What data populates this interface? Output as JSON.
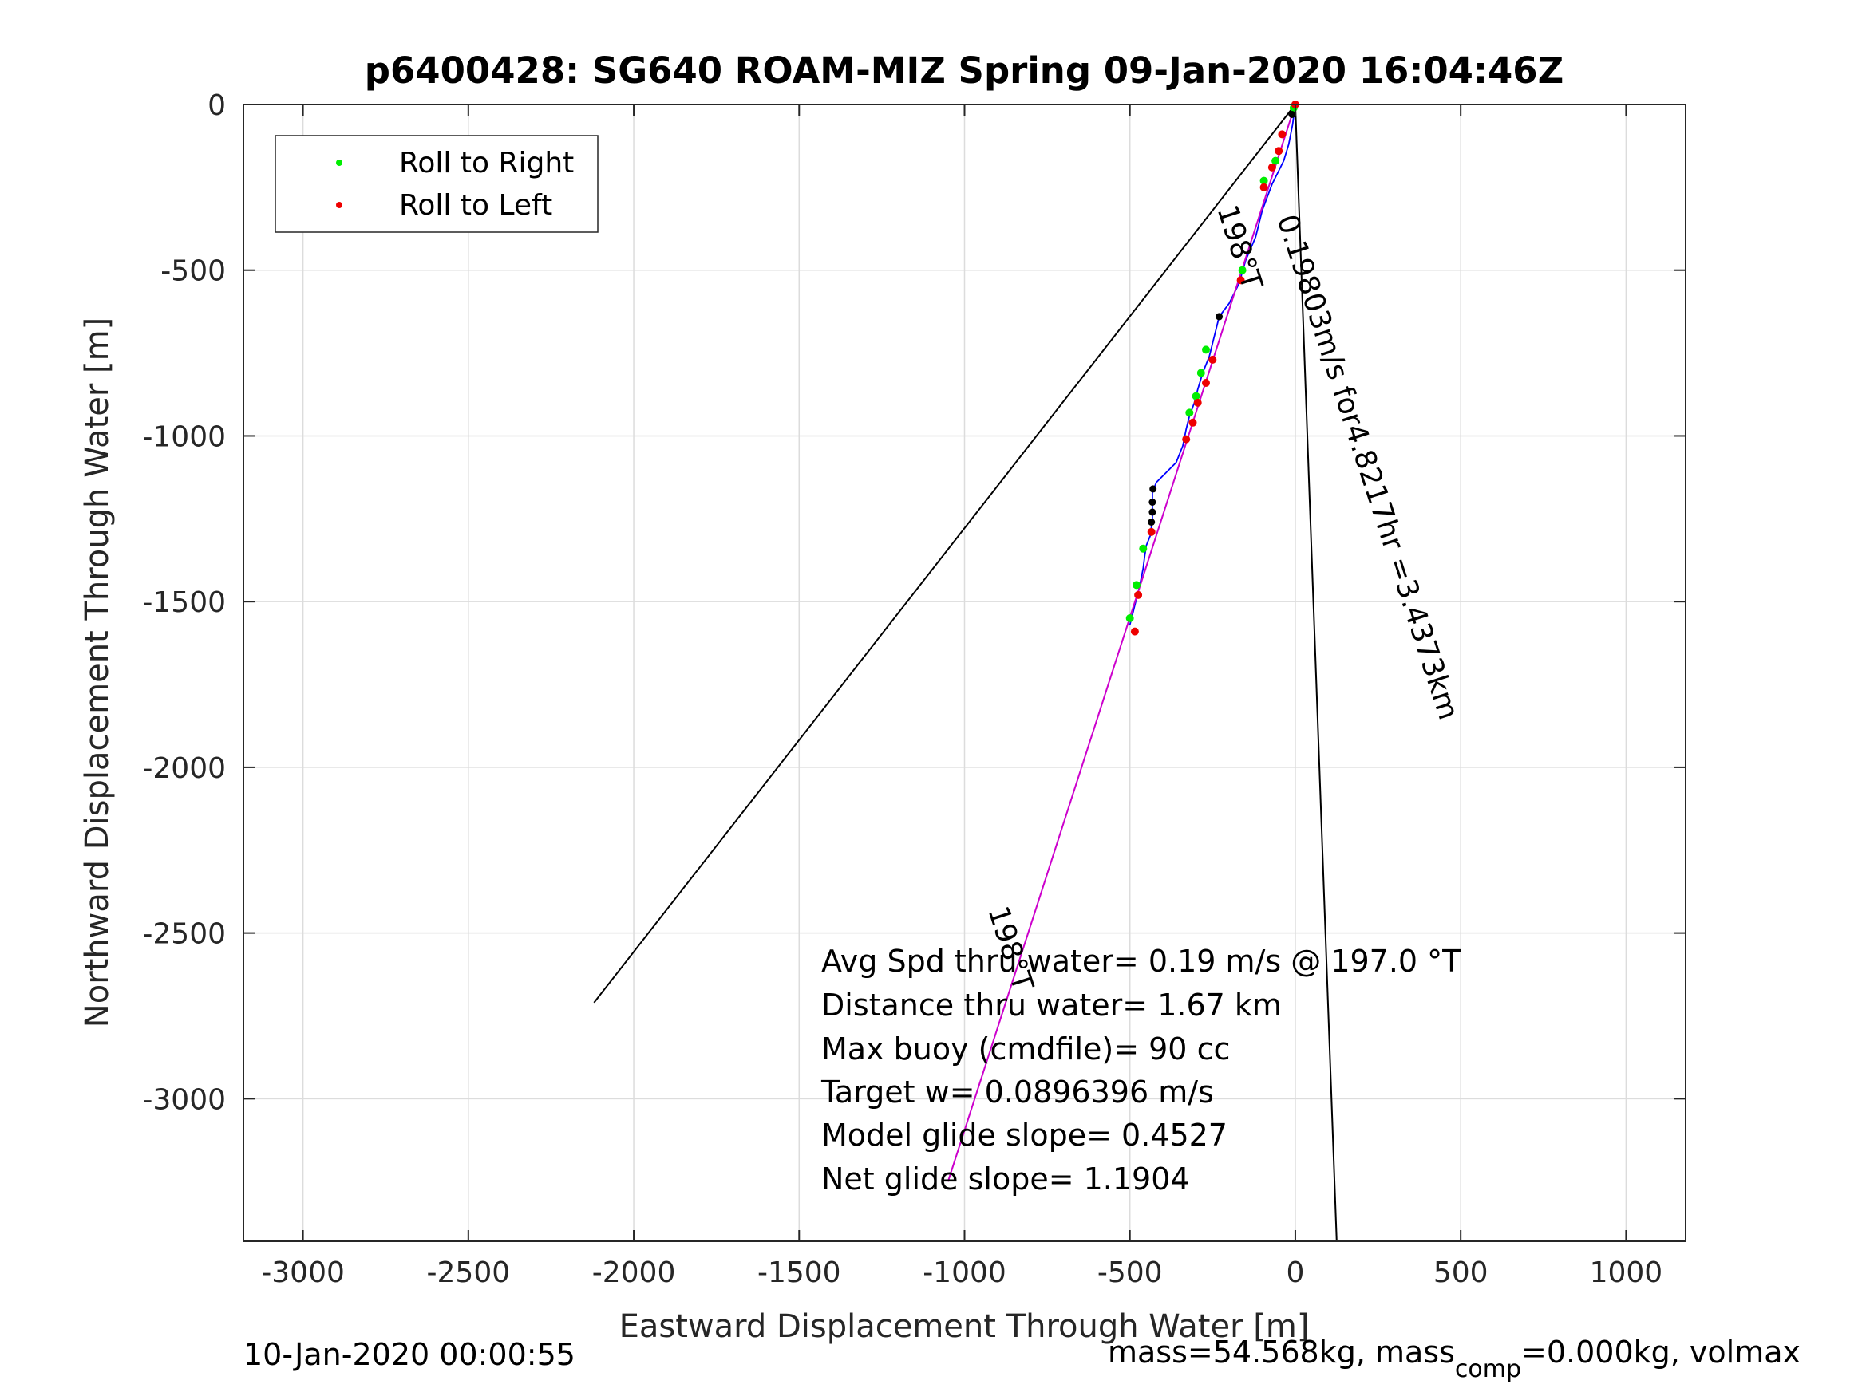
{
  "chart_data": {
    "type": "line",
    "title": "p6400428: SG640 ROAM-MIZ Spring 09-Jan-2020 16:04:46Z",
    "xlabel": "Eastward Displacement Through Water [m]",
    "ylabel": "Northward Displacement Through Water [m]",
    "xlim": [
      -3180,
      1180
    ],
    "ylim": [
      -3430,
      0
    ],
    "xticks": [
      -3000,
      -2500,
      -2000,
      -1500,
      -1000,
      -500,
      0,
      500,
      1000
    ],
    "yticks": [
      0,
      -500,
      -1000,
      -1500,
      -2000,
      -2500,
      -3000
    ],
    "grid": true,
    "legend_position": "top-left",
    "legend": [
      {
        "label": "Roll to Right",
        "color": "#00ee00"
      },
      {
        "label": "Roll to Left",
        "color": "#ee0000"
      }
    ],
    "series": [
      {
        "name": "track",
        "color": "#0000ff",
        "x": [
          0,
          -8,
          -20,
          -35,
          -50,
          -70,
          -85,
          -100,
          -120,
          -150,
          -170,
          -200,
          -230,
          -245,
          -260,
          -280,
          -295,
          -305,
          -320,
          -330,
          -340,
          -360,
          -390,
          -420,
          -432,
          -432,
          -438,
          -450,
          -455,
          -460,
          -470,
          -480,
          -490,
          -500
        ],
        "y": [
          0,
          -60,
          -120,
          -170,
          -200,
          -240,
          -280,
          -320,
          -400,
          -470,
          -540,
          -600,
          -640,
          -700,
          -760,
          -810,
          -860,
          -900,
          -940,
          -980,
          -1030,
          -1080,
          -1110,
          -1140,
          -1170,
          -1250,
          -1300,
          -1330,
          -1360,
          -1400,
          -1450,
          -1490,
          -1530,
          -1570
        ]
      },
      {
        "name": "heading-line",
        "color": "#cc00cc",
        "x": [
          0,
          -1050
        ],
        "y": [
          0,
          -3250
        ]
      },
      {
        "name": "guide-line-left",
        "color": "#000000",
        "x": [
          0,
          -2120
        ],
        "y": [
          0,
          -2710
        ]
      },
      {
        "name": "guide-line-right",
        "color": "#000000",
        "x": [
          0,
          125
        ],
        "y": [
          0,
          -3430
        ]
      }
    ],
    "roll_right_points": {
      "color": "#00ee00",
      "x": [
        -5,
        -60,
        -95,
        -160,
        -270,
        -285,
        -300,
        -320,
        -460,
        -480,
        -500
      ],
      "y": [
        -10,
        -170,
        -230,
        -500,
        -740,
        -810,
        -880,
        -930,
        -1340,
        -1450,
        -1550
      ]
    },
    "roll_left_points": {
      "color": "#ee0000",
      "x": [
        0,
        -40,
        -50,
        -70,
        -95,
        -165,
        -250,
        -270,
        -295,
        -310,
        -330,
        -435,
        -475,
        -485
      ],
      "y": [
        0,
        -90,
        -140,
        -190,
        -250,
        -530,
        -770,
        -840,
        -900,
        -960,
        -1010,
        -1290,
        -1480,
        -1590
      ]
    },
    "control_points": {
      "color": "#000000",
      "x": [
        -10,
        -230,
        -430,
        -432,
        -432,
        -435
      ],
      "y": [
        -30,
        -640,
        -1160,
        -1200,
        -1230,
        -1260
      ]
    },
    "annotations": {
      "heading_short": "198°T",
      "heading_long": "198°T",
      "speed_label": "0.19803m/s for4.8217hr =3.4373km",
      "stats": [
        "Avg Spd thru water=  0.19 m/s @ 197.0 °T",
        "Distance thru water=  1.67 km",
        "Max buoy (cmdfile)= 90 cc",
        "Target w= 0.0896396 m/s",
        "Model glide slope= 0.4527",
        "Net glide slope= 1.1904"
      ]
    }
  },
  "footer": {
    "timestamp": "10-Jan-2020 00:00:55",
    "mass_prefix": "mass=54.568kg, mass",
    "mass_sub": "comp",
    "mass_suffix": "=0.000kg, volmax"
  }
}
